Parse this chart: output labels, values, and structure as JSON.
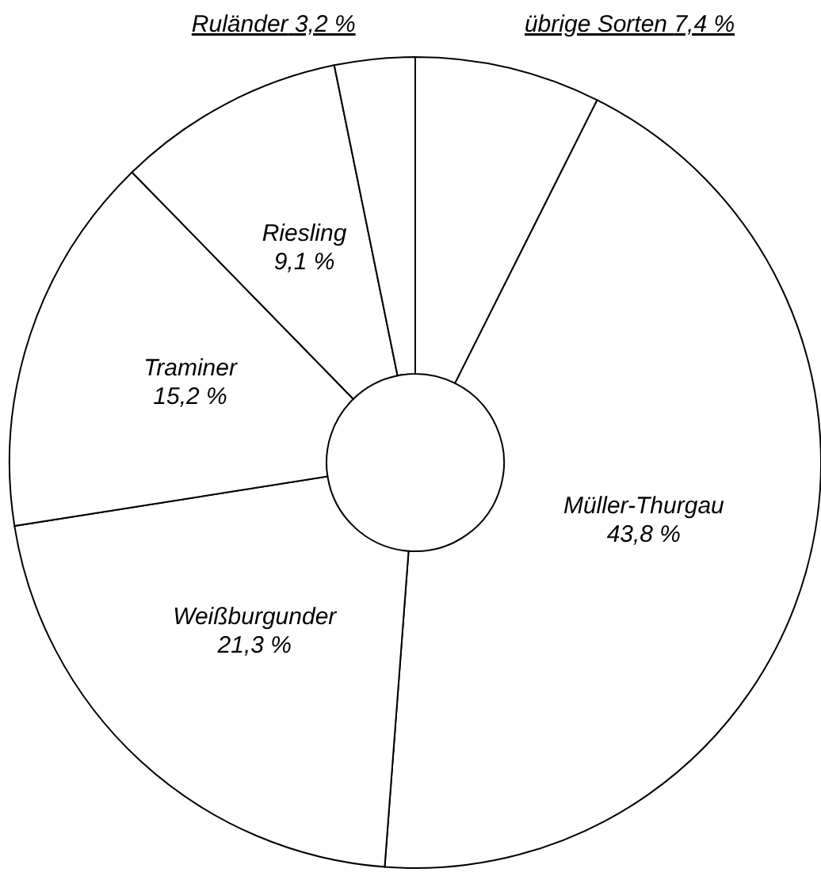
{
  "chart_data": {
    "type": "donut",
    "categories": [
      "übrige Sorten",
      "Müller-Thurgau",
      "Weißburgunder",
      "Traminer",
      "Riesling",
      "Ruländer"
    ],
    "values": [
      7.4,
      43.8,
      21.3,
      15.2,
      9.1,
      3.2
    ],
    "value_labels": [
      "7,4 %",
      "43,8 %",
      "21,3 %",
      "15,2 %",
      "9,1 %",
      "3,2 %"
    ],
    "colors": [
      "#ffffff",
      "#ffffff",
      "#ffffff",
      "#ffffff",
      "#ffffff",
      "#ffffff"
    ]
  }
}
